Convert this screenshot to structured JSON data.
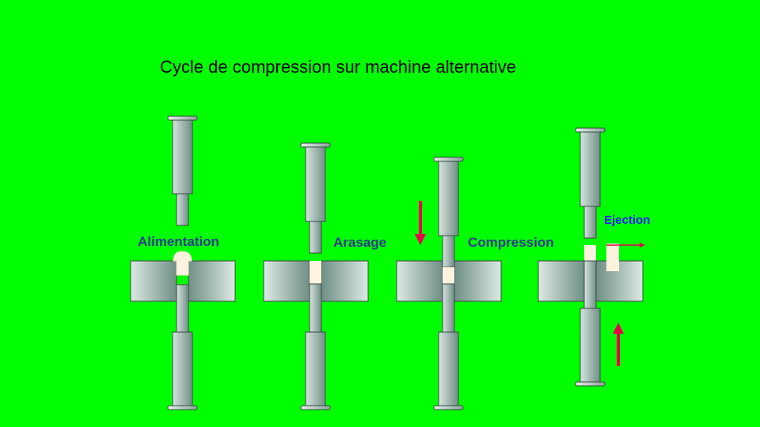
{
  "title": "Cycle de compression sur machine alternative",
  "steps": [
    {
      "label": "Alimentation"
    },
    {
      "label": "Arasage"
    },
    {
      "label": "Compression"
    },
    {
      "label": "Ejection"
    }
  ],
  "colors": {
    "background": "#00ff00",
    "punch_light": "#d6e4df",
    "punch_dark": "#6f8f85",
    "powder": "#fdf3df",
    "arrow": "#e8004a",
    "label": "#2e3a8c",
    "ejection_label": "#1a1aff"
  }
}
